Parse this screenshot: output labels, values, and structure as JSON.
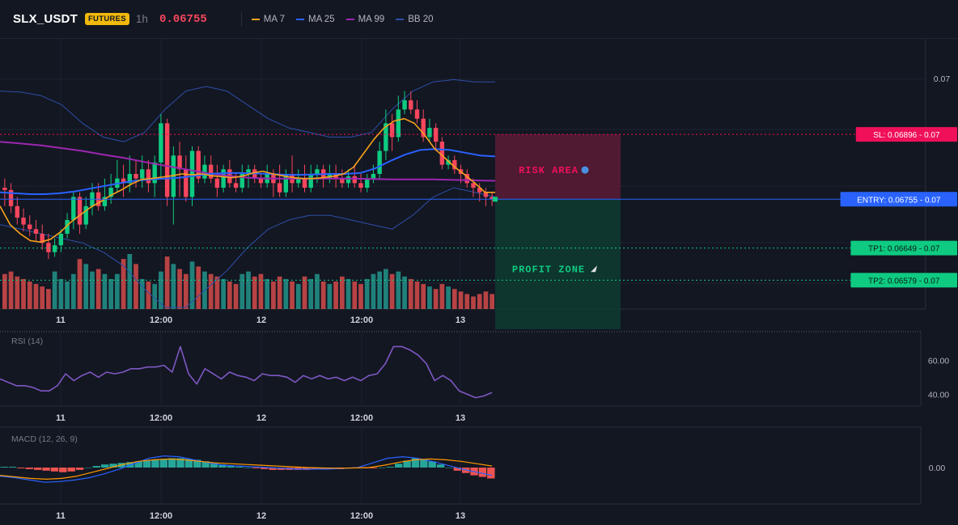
{
  "header": {
    "symbol": "SLX_USDT",
    "badge": "FUTURES",
    "interval": "1h",
    "price": "0.06755",
    "legend": [
      {
        "label": "MA 7",
        "color": "#f7a21b"
      },
      {
        "label": "MA 25",
        "color": "#2962ff"
      },
      {
        "label": "MA 99",
        "color": "#9c27b0"
      },
      {
        "label": "BB 20",
        "color": "#2e4ea8"
      }
    ]
  },
  "colors": {
    "up": "#0ecb81",
    "down": "#f6465d",
    "volume_up": "#26a69a",
    "volume_down": "#ef5350",
    "risk": "#5a1b35",
    "profit": "#0e3b30",
    "sl": "#f0105a",
    "entry": "#2962ff",
    "tp": "#0ecb81"
  },
  "chart_data": [
    {
      "type": "candlestick",
      "x_ticks": [
        "11",
        "12:00",
        "12",
        "12:00",
        "13"
      ],
      "y_ticks": [
        "0.07"
      ],
      "candles": [
        [
          0.0678,
          0.06775,
          0.068,
          0.0674
        ],
        [
          0.06775,
          0.0674,
          0.0679,
          0.06725
        ],
        [
          0.0674,
          0.06715,
          0.0676,
          0.067
        ],
        [
          0.06715,
          0.067,
          0.06735,
          0.06685
        ],
        [
          0.067,
          0.0669,
          0.0672,
          0.06675
        ],
        [
          0.0669,
          0.0668,
          0.0671,
          0.06665
        ],
        [
          0.0668,
          0.0666,
          0.067,
          0.06645
        ],
        [
          0.0666,
          0.0664,
          0.0668,
          0.06625
        ],
        [
          0.0664,
          0.06655,
          0.0667,
          0.0663
        ],
        [
          0.06655,
          0.0668,
          0.0669,
          0.0664
        ],
        [
          0.0668,
          0.0671,
          0.06725,
          0.0667
        ],
        [
          0.0671,
          0.0676,
          0.0677,
          0.0669
        ],
        [
          0.0676,
          0.067,
          0.0677,
          0.0668
        ],
        [
          0.067,
          0.0674,
          0.0676,
          0.0669
        ],
        [
          0.0674,
          0.0677,
          0.0679,
          0.0672
        ],
        [
          0.0677,
          0.0674,
          0.0679,
          0.0673
        ],
        [
          0.0674,
          0.0676,
          0.068,
          0.0673
        ],
        [
          0.0676,
          0.0678,
          0.0681,
          0.06745
        ],
        [
          0.0678,
          0.068,
          0.0684,
          0.0677
        ],
        [
          0.068,
          0.0679,
          0.0683,
          0.0676
        ],
        [
          0.0679,
          0.0681,
          0.0685,
          0.0677
        ],
        [
          0.0681,
          0.068,
          0.0684,
          0.0678
        ],
        [
          0.068,
          0.0682,
          0.0685,
          0.0678
        ],
        [
          0.0682,
          0.0679,
          0.0684,
          0.0677
        ],
        [
          0.0679,
          0.06835,
          0.0685,
          0.0676
        ],
        [
          0.06835,
          0.0692,
          0.0694,
          0.068
        ],
        [
          0.0692,
          0.0676,
          0.0693,
          0.0674
        ],
        [
          0.0676,
          0.0685,
          0.0687,
          0.067
        ],
        [
          0.0685,
          0.0682,
          0.0688,
          0.0676
        ],
        [
          0.0682,
          0.0676,
          0.0685,
          0.0675
        ],
        [
          0.0676,
          0.0686,
          0.0687,
          0.0674
        ],
        [
          0.0686,
          0.068,
          0.0687,
          0.0679
        ],
        [
          0.068,
          0.0683,
          0.0685,
          0.0679
        ],
        [
          0.0683,
          0.068,
          0.0685,
          0.0679
        ],
        [
          0.068,
          0.0678,
          0.0683,
          0.0676
        ],
        [
          0.0678,
          0.0682,
          0.0683,
          0.0677
        ],
        [
          0.0682,
          0.0679,
          0.0684,
          0.0678
        ],
        [
          0.0679,
          0.0678,
          0.0681,
          0.0677
        ],
        [
          0.0678,
          0.0681,
          0.0683,
          0.0677
        ],
        [
          0.0681,
          0.0682,
          0.0683,
          0.0678
        ],
        [
          0.0682,
          0.068,
          0.0683,
          0.0679
        ],
        [
          0.068,
          0.0679,
          0.0681,
          0.0678
        ],
        [
          0.0679,
          0.0681,
          0.0683,
          0.0678
        ],
        [
          0.0681,
          0.0679,
          0.0682,
          0.0676
        ],
        [
          0.0679,
          0.0677,
          0.0683,
          0.0676
        ],
        [
          0.0677,
          0.0681,
          0.0682,
          0.0676
        ],
        [
          0.0681,
          0.0679,
          0.0685,
          0.0677
        ],
        [
          0.0679,
          0.068,
          0.0682,
          0.0678
        ],
        [
          0.068,
          0.0678,
          0.0683,
          0.0677
        ],
        [
          0.0678,
          0.0681,
          0.0683,
          0.0677
        ],
        [
          0.0681,
          0.0682,
          0.0683,
          0.0679
        ],
        [
          0.0682,
          0.068,
          0.0683,
          0.0678
        ],
        [
          0.068,
          0.0681,
          0.0683,
          0.0679
        ],
        [
          0.0681,
          0.068,
          0.0683,
          0.0678
        ],
        [
          0.068,
          0.0679,
          0.0682,
          0.0678
        ],
        [
          0.0679,
          0.06805,
          0.0682,
          0.0678
        ],
        [
          0.06805,
          0.0679,
          0.0683,
          0.0678
        ],
        [
          0.0679,
          0.0678,
          0.0681,
          0.0677
        ],
        [
          0.0678,
          0.068,
          0.0681,
          0.0677
        ],
        [
          0.068,
          0.0681,
          0.0683,
          0.0679
        ],
        [
          0.0681,
          0.0686,
          0.0688,
          0.068
        ],
        [
          0.0686,
          0.0692,
          0.0695,
          0.0684
        ],
        [
          0.0692,
          0.0689,
          0.0694,
          0.0686
        ],
        [
          0.0689,
          0.0695,
          0.0698,
          0.0688
        ],
        [
          0.0695,
          0.0697,
          0.0699,
          0.0694
        ],
        [
          0.0697,
          0.0695,
          0.0699,
          0.0694
        ],
        [
          0.0695,
          0.0693,
          0.0697,
          0.0692
        ],
        [
          0.0693,
          0.0689,
          0.0695,
          0.0688
        ],
        [
          0.0689,
          0.0691,
          0.0693,
          0.0688
        ],
        [
          0.0691,
          0.0688,
          0.0692,
          0.0686
        ],
        [
          0.0688,
          0.0683,
          0.0689,
          0.0682
        ],
        [
          0.0683,
          0.0684,
          0.0685,
          0.0682
        ],
        [
          0.0684,
          0.0682,
          0.0685,
          0.0681
        ],
        [
          0.0682,
          0.0681,
          0.0683,
          0.0679
        ],
        [
          0.0681,
          0.0679,
          0.0682,
          0.0678
        ],
        [
          0.0679,
          0.0678,
          0.068,
          0.0676
        ],
        [
          0.0678,
          0.0677,
          0.0679,
          0.0675
        ],
        [
          0.0677,
          0.0676,
          0.0678,
          0.0674
        ],
        [
          0.0676,
          0.06755,
          0.0677,
          0.0674
        ]
      ],
      "volume": [
        28,
        30,
        26,
        24,
        22,
        20,
        18,
        16,
        30,
        24,
        22,
        28,
        40,
        36,
        30,
        32,
        28,
        24,
        28,
        40,
        44,
        36,
        24,
        22,
        20,
        30,
        42,
        36,
        32,
        28,
        38,
        34,
        30,
        28,
        26,
        24,
        22,
        20,
        28,
        30,
        26,
        28,
        24,
        22,
        26,
        24,
        22,
        20,
        26,
        24,
        28,
        22,
        20,
        22,
        26,
        24,
        22,
        20,
        24,
        28,
        30,
        32,
        28,
        30,
        26,
        24,
        22,
        20,
        18,
        16,
        20,
        18,
        16,
        14,
        12,
        10,
        12,
        14,
        12
      ],
      "ma7": [
        0.0674,
        0.067,
        0.0668,
        0.06665,
        0.06662,
        0.06668,
        0.06684,
        0.06705,
        0.06722,
        0.06738,
        0.0675,
        0.06764,
        0.06775,
        0.06788,
        0.06798,
        0.068,
        0.06803,
        0.06806,
        0.0681,
        0.06808,
        0.0681,
        0.06806,
        0.06804,
        0.06802,
        0.06805,
        0.06812,
        0.06816,
        0.0681,
        0.06806,
        0.06802,
        0.068,
        0.068,
        0.06802,
        0.06805,
        0.0681,
        0.06825,
        0.06855,
        0.06885,
        0.0691,
        0.06925,
        0.0693,
        0.0692,
        0.06895,
        0.06865,
        0.06845,
        0.06825,
        0.06808,
        0.0679,
        0.0677,
        0.0677
      ],
      "ma25": [
        0.0677,
        0.06768,
        0.06766,
        0.06766,
        0.06768,
        0.06772,
        0.06778,
        0.06784,
        0.0679,
        0.06795,
        0.06798,
        0.068,
        0.06802,
        0.06806,
        0.0681,
        0.06812,
        0.06812,
        0.06811,
        0.0681,
        0.06808,
        0.06808,
        0.06809,
        0.0681,
        0.0681,
        0.06812,
        0.06822,
        0.06838,
        0.06852,
        0.06862,
        0.06864,
        0.06862,
        0.06856,
        0.0685,
        0.06848
      ],
      "ma99": [
        0.0688,
        0.06876,
        0.06872,
        0.06866,
        0.0686,
        0.06852,
        0.06845,
        0.06836,
        0.06828,
        0.0682,
        0.06812,
        0.06806,
        0.06802,
        0.068,
        0.068,
        0.068,
        0.068,
        0.068,
        0.06799,
        0.06798,
        0.06798,
        0.06798,
        0.06797,
        0.06796,
        0.06795
      ],
      "bb_upper": [
        0.0699,
        0.06988,
        0.0698,
        0.0696,
        0.0692,
        0.0689,
        0.0688,
        0.069,
        0.0695,
        0.0699,
        0.07,
        0.0699,
        0.0696,
        0.0693,
        0.0691,
        0.069,
        0.0689,
        0.0689,
        0.069,
        0.0695,
        0.0699,
        0.0701,
        0.07015,
        0.0701,
        0.0701
      ],
      "bb_lower": [
        0.067,
        0.0669,
        0.0668,
        0.0667,
        0.0666,
        0.0664,
        0.0661,
        0.0656,
        0.0652,
        0.0652,
        0.0656,
        0.066,
        0.0665,
        0.0669,
        0.0671,
        0.0672,
        0.0672,
        0.0671,
        0.067,
        0.0669,
        0.0672,
        0.0676,
        0.0678,
        0.0677,
        0.0676
      ],
      "ylim": [
        0.0652,
        0.071
      ],
      "levels": {
        "sl": {
          "value": 0.06896,
          "label": "SL: 0.06896",
          "tag": "0.07"
        },
        "entry": {
          "value": 0.06755,
          "label": "ENTRY: 0.06755",
          "tag": "0.07"
        },
        "tp1": {
          "value": 0.06649,
          "label": "TP1: 0.06649",
          "tag": "0.07"
        },
        "tp2": {
          "value": 0.06579,
          "label": "TP2: 0.06579",
          "tag": "0.07"
        }
      },
      "zones": {
        "risk_label": "RISK AREA",
        "profit_label": "PROFIT ZONE"
      }
    },
    {
      "type": "line",
      "label": "RSI (14)",
      "x_ticks": [
        "11",
        "12:00",
        "12",
        "12:00",
        "13"
      ],
      "y_ticks": [
        "60.00",
        "40.00"
      ],
      "ylim": [
        34,
        72
      ],
      "values": [
        49,
        47,
        45,
        45,
        44,
        42,
        42,
        45,
        52,
        48,
        51,
        53,
        50,
        53,
        52,
        53,
        55,
        55,
        56,
        56,
        57,
        53,
        68,
        52,
        46,
        55,
        52,
        49,
        53,
        51,
        50,
        48,
        52,
        51,
        51,
        50,
        47,
        51,
        49,
        51,
        49,
        50,
        48,
        50,
        48,
        51,
        52,
        58,
        68,
        68,
        66,
        63,
        58,
        48,
        51,
        48,
        42,
        40,
        38,
        39,
        41
      ],
      "color": "#7e57c2"
    },
    {
      "type": "bar",
      "label": "MACD (12, 26, 9)",
      "x_ticks": [
        "11",
        "12:00",
        "12",
        "12:00",
        "13"
      ],
      "y_ticks": [
        "0.00"
      ],
      "ylim": [
        -2.5,
        2.5
      ],
      "histogram": [
        0.1,
        0.1,
        -0.1,
        -0.2,
        -0.3,
        -0.4,
        -0.5,
        -0.6,
        -0.5,
        -0.3,
        0,
        0.2,
        0.4,
        0.5,
        0.6,
        0.7,
        0.8,
        0.9,
        1,
        1.1,
        1.2,
        1.2,
        1.1,
        1,
        0.8,
        0.6,
        0.4,
        0.2,
        0.1,
        0,
        -0.1,
        -0.2,
        -0.3,
        -0.3,
        -0.3,
        -0.3,
        -0.3,
        -0.2,
        -0.2,
        -0.2,
        -0.2,
        -0.1,
        -0.1,
        -0.1,
        -0.1,
        0,
        0.1,
        0.5,
        0.9,
        1.2,
        1.1,
        0.8,
        0.4,
        0,
        -0.4,
        -0.7,
        -1.0,
        -1.2,
        -1.4
      ],
      "macd": [
        -1.1,
        -1.3,
        -1.6,
        -1.9,
        -1.8,
        -1.6,
        -1.3,
        -0.8,
        -0.2,
        0.5,
        1.2,
        1.5,
        1.4,
        1.0,
        0.6,
        0.3,
        0.2,
        0.1,
        0.0,
        -0.1,
        -0.2,
        -0.2,
        -0.2,
        -0.1,
        0.0,
        0.6,
        1.2,
        1.4,
        1.2,
        0.8,
        0.3,
        -0.2,
        -0.6,
        -1.0
      ],
      "signal": [
        -1.0,
        -1.2,
        -1.4,
        -1.5,
        -1.4,
        -1.1,
        -0.6,
        -0.1,
        0.4,
        0.8,
        1.0,
        1.1,
        1.0,
        0.8,
        0.6,
        0.5,
        0.4,
        0.3,
        0.2,
        0.1,
        0.0,
        -0.05,
        -0.08,
        -0.05,
        0.0,
        0.3,
        0.7,
        1.0,
        1.1,
        1.0,
        0.8,
        0.5,
        0.2
      ],
      "macd_color": "#2962ff",
      "signal_color": "#ff9800"
    }
  ]
}
